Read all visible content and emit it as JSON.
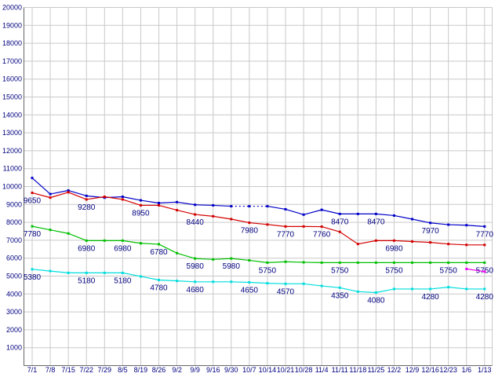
{
  "chart_data": {
    "type": "line",
    "title": "",
    "xlabel": "",
    "ylabel": "",
    "grid": true,
    "legend": "none",
    "x_labels": [
      "7/1",
      "7/8",
      "7/15",
      "7/22",
      "7/29",
      "8/5",
      "8/19",
      "8/26",
      "9/2",
      "9/9",
      "9/16",
      "9/30",
      "10/7",
      "10/14",
      "10/21",
      "10/28",
      "11/4",
      "11/11",
      "11/18",
      "11/25",
      "12/2",
      "12/9",
      "12/16",
      "12/23",
      "1/6",
      "1/13"
    ],
    "y_axis": {
      "min": 0,
      "max": 20000,
      "step": 1000,
      "tick_labels": [
        "1000",
        "2000",
        "3000",
        "4000",
        "5000",
        "6000",
        "7000",
        "8000",
        "9000",
        "10000",
        "11000",
        "12000",
        "13000",
        "14000",
        "15000",
        "16000",
        "17000",
        "18000",
        "19000",
        "20000"
      ]
    },
    "series": [
      {
        "name": "blue",
        "color": "#0000c8",
        "values": [
          10480,
          9580,
          9780,
          9480,
          9380,
          9430,
          9230,
          9080,
          9130,
          8980,
          8950,
          8900,
          8900,
          8900,
          8730,
          8430,
          8700,
          8470,
          8470,
          8470,
          8380,
          8180,
          7970,
          7870,
          7840,
          7770
        ],
        "dash_segments": [
          [
            11,
            13
          ]
        ],
        "labels": [
          {
            "i": 17,
            "text": "8470"
          },
          {
            "i": 19,
            "text": "8470"
          },
          {
            "i": 22,
            "text": "7970"
          },
          {
            "i": 25,
            "text": "7770"
          }
        ]
      },
      {
        "name": "red",
        "color": "#d40000",
        "values": [
          9650,
          9380,
          9680,
          9280,
          9430,
          9280,
          8950,
          8950,
          8680,
          8440,
          8340,
          8180,
          7980,
          7880,
          7770,
          7770,
          7760,
          7470,
          6790,
          6980,
          6980,
          6930,
          6880,
          6790,
          6740,
          6740
        ],
        "dash_segments": [],
        "labels": [
          {
            "i": 0,
            "text": "9650"
          },
          {
            "i": 3,
            "text": "9280"
          },
          {
            "i": 6,
            "text": "8950"
          },
          {
            "i": 9,
            "text": "8440"
          },
          {
            "i": 12,
            "text": "7980"
          },
          {
            "i": 14,
            "text": "7770"
          },
          {
            "i": 16,
            "text": "7760"
          },
          {
            "i": 20,
            "text": "6980"
          }
        ]
      },
      {
        "name": "green",
        "color": "#00c000",
        "values": [
          7780,
          7580,
          7380,
          6980,
          6980,
          6980,
          6830,
          6780,
          6280,
          5980,
          5930,
          5980,
          5880,
          5750,
          5800,
          5770,
          5750,
          5750,
          5750,
          5750,
          5750,
          5750,
          5750,
          5750,
          5750,
          5750
        ],
        "dash_segments": [],
        "labels": [
          {
            "i": 0,
            "text": "7780"
          },
          {
            "i": 3,
            "text": "6980"
          },
          {
            "i": 5,
            "text": "6980"
          },
          {
            "i": 7,
            "text": "6780"
          },
          {
            "i": 9,
            "text": "5980"
          },
          {
            "i": 11,
            "text": "5980"
          },
          {
            "i": 13,
            "text": "5750"
          },
          {
            "i": 17,
            "text": "5750"
          },
          {
            "i": 20,
            "text": "5750"
          },
          {
            "i": 23,
            "text": "5750"
          },
          {
            "i": 25,
            "text": "5750"
          }
        ]
      },
      {
        "name": "cyan",
        "color": "#00dede",
        "values": [
          5380,
          5280,
          5180,
          5180,
          5180,
          5180,
          4980,
          4780,
          4730,
          4680,
          4680,
          4680,
          4650,
          4600,
          4570,
          4570,
          4450,
          4350,
          4130,
          4080,
          4280,
          4280,
          4280,
          4380,
          4280,
          4280
        ],
        "dash_segments": [],
        "labels": [
          {
            "i": 0,
            "text": "5380"
          },
          {
            "i": 3,
            "text": "5180"
          },
          {
            "i": 5,
            "text": "5180"
          },
          {
            "i": 7,
            "text": "4780"
          },
          {
            "i": 9,
            "text": "4680"
          },
          {
            "i": 12,
            "text": "4650"
          },
          {
            "i": 14,
            "text": "4570"
          },
          {
            "i": 17,
            "text": "4350"
          },
          {
            "i": 19,
            "text": "4080"
          },
          {
            "i": 22,
            "text": "4280"
          },
          {
            "i": 25,
            "text": "4280"
          }
        ]
      },
      {
        "name": "magenta",
        "color": "#f000f0",
        "values": [
          null,
          null,
          null,
          null,
          null,
          null,
          null,
          null,
          null,
          null,
          null,
          null,
          null,
          null,
          null,
          null,
          null,
          null,
          null,
          null,
          null,
          null,
          null,
          null,
          5400,
          5250
        ],
        "dash_segments": [],
        "labels": []
      }
    ]
  },
  "colors": {
    "background": "#ffffff",
    "grid": "#c9c9c9",
    "axis": "#666666",
    "tick_text": "#000080",
    "point_label_text": "#000080"
  }
}
